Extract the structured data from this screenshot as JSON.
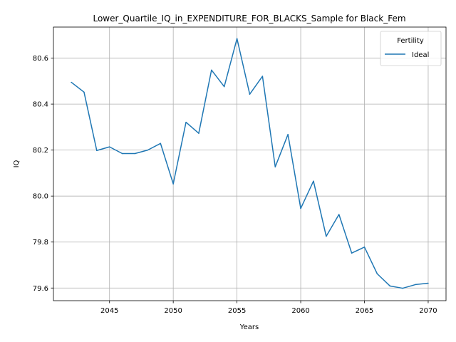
{
  "chart_data": {
    "type": "line",
    "title": "Lower_Quartile_IQ_in_EXPENDITURE_FOR_BLACKS_Sample for Black_Fem",
    "xlabel": "Years",
    "ylabel": "IQ",
    "xlim": [
      2040.6,
      2071.4
    ],
    "ylim": [
      79.545,
      80.735
    ],
    "x_ticks": [
      2045,
      2050,
      2055,
      2060,
      2065,
      2070
    ],
    "y_ticks": [
      79.6,
      79.8,
      80.0,
      80.2,
      80.4,
      80.6
    ],
    "y_tick_labels": [
      "79.6",
      "79.8",
      "80.0",
      "80.2",
      "80.4",
      "80.6"
    ],
    "grid": true,
    "legend": {
      "title": "Fertility",
      "position": "top-right"
    },
    "x": [
      2042,
      2043,
      2044,
      2045,
      2046,
      2047,
      2048,
      2049,
      2050,
      2051,
      2052,
      2053,
      2054,
      2055,
      2056,
      2057,
      2058,
      2059,
      2060,
      2061,
      2062,
      2063,
      2064,
      2065,
      2066,
      2067,
      2068,
      2069,
      2070
    ],
    "series": [
      {
        "name": "Ideal",
        "color": "#1f77b4",
        "values": [
          80.495,
          80.452,
          80.198,
          80.214,
          80.185,
          80.185,
          80.2,
          80.229,
          80.053,
          80.321,
          80.273,
          80.548,
          80.476,
          80.685,
          80.443,
          80.521,
          80.127,
          80.268,
          79.946,
          80.065,
          79.825,
          79.92,
          79.752,
          79.778,
          79.662,
          79.609,
          79.599,
          79.615,
          79.621
        ]
      }
    ]
  }
}
